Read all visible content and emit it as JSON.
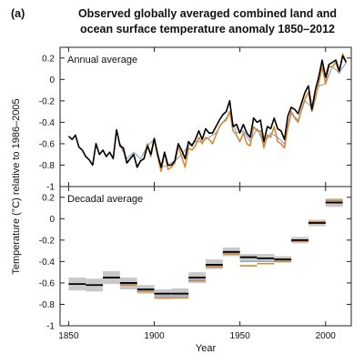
{
  "figure": {
    "panel_label": "(a)",
    "title_lines": [
      "Observed globally averaged combined land and",
      "ocean surface temperature anomaly 1850–2012"
    ]
  },
  "colors": {
    "black_series": "#000000",
    "orange_series": "#D4883A",
    "blue_series": "#8CA6C7",
    "uncertainty_box": "#C8C8C8",
    "axes": "#222222"
  },
  "chart_data": [
    {
      "type": "line",
      "panel_title": "Annual average",
      "xlabel": "Year",
      "ylabel": "Temperature (°C) relative to 1986–2005",
      "xlim": [
        1845,
        2015
      ],
      "ylim": [
        -1,
        0.3
      ],
      "xticks": [
        "1850",
        "1900",
        "1950",
        "2000"
      ],
      "yticks": [
        "0.2",
        "0",
        "-0.2",
        "-0.4",
        "-0.6",
        "-0.8",
        "-1"
      ],
      "grid": false,
      "series": [
        {
          "color_key": "black_series",
          "x": [
            1850,
            1852,
            1854,
            1856,
            1858,
            1860,
            1862,
            1864,
            1866,
            1868,
            1870,
            1872,
            1874,
            1876,
            1878,
            1880,
            1882,
            1884,
            1886,
            1888,
            1890,
            1892,
            1894,
            1896,
            1898,
            1900,
            1902,
            1904,
            1906,
            1908,
            1910,
            1912,
            1914,
            1916,
            1918,
            1920,
            1922,
            1924,
            1926,
            1928,
            1930,
            1932,
            1934,
            1936,
            1938,
            1940,
            1942,
            1944,
            1946,
            1948,
            1950,
            1952,
            1954,
            1956,
            1958,
            1960,
            1962,
            1964,
            1966,
            1968,
            1970,
            1972,
            1974,
            1976,
            1978,
            1980,
            1982,
            1984,
            1986,
            1988,
            1990,
            1992,
            1994,
            1996,
            1998,
            2000,
            2002,
            2004,
            2006,
            2008,
            2010,
            2012
          ],
          "y": [
            -0.53,
            -0.56,
            -0.52,
            -0.63,
            -0.66,
            -0.72,
            -0.75,
            -0.8,
            -0.6,
            -0.7,
            -0.66,
            -0.72,
            -0.68,
            -0.74,
            -0.47,
            -0.62,
            -0.64,
            -0.78,
            -0.74,
            -0.7,
            -0.82,
            -0.76,
            -0.74,
            -0.62,
            -0.7,
            -0.55,
            -0.7,
            -0.82,
            -0.68,
            -0.8,
            -0.8,
            -0.76,
            -0.6,
            -0.66,
            -0.74,
            -0.58,
            -0.62,
            -0.56,
            -0.48,
            -0.56,
            -0.46,
            -0.5,
            -0.5,
            -0.44,
            -0.38,
            -0.33,
            -0.3,
            -0.2,
            -0.44,
            -0.42,
            -0.5,
            -0.42,
            -0.5,
            -0.54,
            -0.36,
            -0.4,
            -0.38,
            -0.58,
            -0.44,
            -0.46,
            -0.36,
            -0.46,
            -0.48,
            -0.56,
            -0.34,
            -0.26,
            -0.28,
            -0.32,
            -0.22,
            -0.12,
            -0.06,
            -0.28,
            -0.1,
            0.02,
            0.18,
            0.02,
            0.14,
            0.16,
            0.18,
            0.08,
            0.22,
            0.16
          ]
        },
        {
          "color_key": "orange_series",
          "x": [
            1880,
            1882,
            1884,
            1886,
            1888,
            1890,
            1892,
            1894,
            1896,
            1898,
            1900,
            1902,
            1904,
            1906,
            1908,
            1910,
            1912,
            1914,
            1916,
            1918,
            1920,
            1922,
            1924,
            1926,
            1928,
            1930,
            1932,
            1934,
            1936,
            1938,
            1940,
            1942,
            1944,
            1946,
            1948,
            1950,
            1952,
            1954,
            1956,
            1958,
            1960,
            1962,
            1964,
            1966,
            1968,
            1970,
            1972,
            1974,
            1976,
            1978,
            1980,
            1982,
            1984,
            1986,
            1988,
            1990,
            1992,
            1994,
            1996,
            1998,
            2000,
            2002,
            2004,
            2006,
            2008,
            2010,
            2012
          ],
          "y": [
            -0.6,
            -0.66,
            -0.78,
            -0.74,
            -0.7,
            -0.82,
            -0.76,
            -0.74,
            -0.6,
            -0.72,
            -0.56,
            -0.72,
            -0.86,
            -0.68,
            -0.84,
            -0.82,
            -0.78,
            -0.62,
            -0.72,
            -0.82,
            -0.64,
            -0.66,
            -0.62,
            -0.54,
            -0.6,
            -0.54,
            -0.56,
            -0.6,
            -0.52,
            -0.44,
            -0.4,
            -0.38,
            -0.3,
            -0.48,
            -0.52,
            -0.58,
            -0.5,
            -0.6,
            -0.62,
            -0.44,
            -0.48,
            -0.48,
            -0.64,
            -0.52,
            -0.54,
            -0.44,
            -0.58,
            -0.6,
            -0.64,
            -0.44,
            -0.3,
            -0.36,
            -0.4,
            -0.28,
            -0.18,
            -0.12,
            -0.3,
            -0.18,
            -0.04,
            0.12,
            -0.04,
            0.12,
            0.12,
            0.16,
            0.06,
            0.24,
            0.16
          ]
        },
        {
          "color_key": "blue_series",
          "x": [
            1880,
            1884,
            1888,
            1892,
            1896,
            1900,
            1904,
            1908,
            1912,
            1916,
            1920,
            1924,
            1928,
            1932,
            1936,
            1940,
            1944,
            1948,
            1952,
            1956,
            1960,
            1964,
            1968,
            1972,
            1976,
            1980,
            1984,
            1988,
            1992,
            1996,
            2000,
            2004,
            2008,
            2012
          ],
          "y": [
            -0.62,
            -0.74,
            -0.68,
            -0.74,
            -0.62,
            -0.56,
            -0.82,
            -0.8,
            -0.76,
            -0.7,
            -0.62,
            -0.58,
            -0.58,
            -0.54,
            -0.5,
            -0.4,
            -0.32,
            -0.5,
            -0.48,
            -0.58,
            -0.46,
            -0.6,
            -0.5,
            -0.54,
            -0.6,
            -0.32,
            -0.38,
            -0.2,
            -0.26,
            -0.06,
            -0.04,
            0.12,
            0.06,
            0.16
          ]
        }
      ]
    },
    {
      "type": "bar",
      "panel_title": "Decadal average",
      "xlim": [
        1845,
        2015
      ],
      "ylim": [
        -1,
        0.3
      ],
      "xticks": [
        "1850",
        "1900",
        "1950",
        "2000"
      ],
      "yticks": [
        "0.2",
        "0",
        "-0.2",
        "-0.4",
        "-0.6",
        "-0.8",
        "-1"
      ],
      "grid": false,
      "decades_start": [
        1850,
        1860,
        1870,
        1880,
        1890,
        1900,
        1910,
        1920,
        1930,
        1940,
        1950,
        1960,
        1970,
        1980,
        1990,
        2000
      ],
      "uncertainty_low": [
        -0.67,
        -0.68,
        -0.61,
        -0.66,
        -0.7,
        -0.75,
        -0.74,
        -0.6,
        -0.47,
        -0.35,
        -0.4,
        -0.4,
        -0.41,
        -0.23,
        -0.07,
        0.11
      ],
      "uncertainty_high": [
        -0.55,
        -0.56,
        -0.49,
        -0.55,
        -0.62,
        -0.66,
        -0.65,
        -0.5,
        -0.38,
        -0.27,
        -0.33,
        -0.33,
        -0.35,
        -0.17,
        -0.01,
        0.19
      ],
      "black_values": [
        -0.61,
        -0.62,
        -0.55,
        -0.6,
        -0.66,
        -0.7,
        -0.7,
        -0.55,
        -0.43,
        -0.31,
        -0.36,
        -0.37,
        -0.38,
        -0.2,
        -0.04,
        0.15
      ],
      "orange_values": [
        null,
        null,
        null,
        -0.62,
        -0.68,
        -0.74,
        -0.74,
        -0.58,
        -0.45,
        -0.33,
        -0.44,
        -0.42,
        -0.4,
        -0.21,
        -0.03,
        0.17
      ],
      "blue_values": [
        null,
        null,
        null,
        -0.61,
        -0.67,
        -0.72,
        -0.72,
        -0.57,
        -0.44,
        -0.32,
        -0.4,
        -0.4,
        -0.39,
        -0.2,
        -0.04,
        0.16
      ]
    }
  ]
}
